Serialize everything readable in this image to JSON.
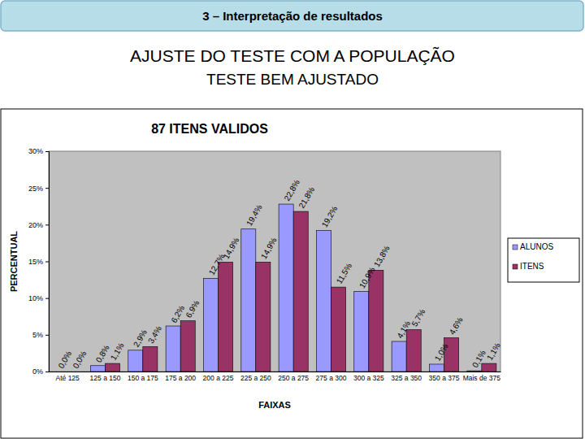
{
  "slide": {
    "section": "3 – Interpretação de resultados",
    "title": "AJUSTE DO TESTE COM A POPULAÇÃO",
    "subtitle": "TESTE BEM AJUSTADO"
  },
  "chart_data": {
    "type": "bar",
    "title": "87 ITENS VALIDOS",
    "x_label": "FAIXAS",
    "y_label": "PERCENTUAL",
    "categories": [
      "Até 125",
      "125 a 150",
      "150 a 175",
      "175 a 200",
      "200 a 225",
      "225 a 250",
      "250 a 275",
      "275 a 300",
      "300 a 325",
      "325 a 350",
      "350 a 375",
      "Mais de 375"
    ],
    "series": [
      {
        "name": "ALUNOS",
        "color": "#9999ff",
        "values": [
          0.0,
          0.8,
          2.9,
          6.2,
          12.7,
          19.4,
          22.8,
          19.2,
          10.9,
          4.1,
          1.0,
          0.1
        ],
        "value_labels": [
          "0,0%",
          "0,8%",
          "2,9%",
          "6,2%",
          "12,7%",
          "19,4%",
          "22,8%",
          "19,2%",
          "10,9%",
          "4,1%",
          "1,0%",
          "0,1%"
        ]
      },
      {
        "name": "ITENS",
        "color": "#993366",
        "values": [
          0.0,
          1.1,
          3.4,
          6.9,
          14.9,
          14.9,
          21.8,
          11.5,
          13.8,
          5.7,
          4.6,
          1.1
        ],
        "value_labels": [
          "0,0%",
          "1,1%",
          "3,4%",
          "6,9%",
          "14,9%",
          "14,9%",
          "21,8%",
          "11,5%",
          "13,8%",
          "5,7%",
          "4,6%",
          "1,1%"
        ]
      }
    ],
    "ylim": [
      0,
      30
    ],
    "yticks": [
      {
        "value": 0,
        "label": "0%"
      },
      {
        "value": 5,
        "label": "5%"
      },
      {
        "value": 10,
        "label": "10%"
      },
      {
        "value": 15,
        "label": "15%"
      },
      {
        "value": 20,
        "label": "20%"
      },
      {
        "value": 25,
        "label": "25%"
      },
      {
        "value": 30,
        "label": "30%"
      }
    ],
    "grid": false,
    "legend": "right",
    "data_labels": true
  }
}
